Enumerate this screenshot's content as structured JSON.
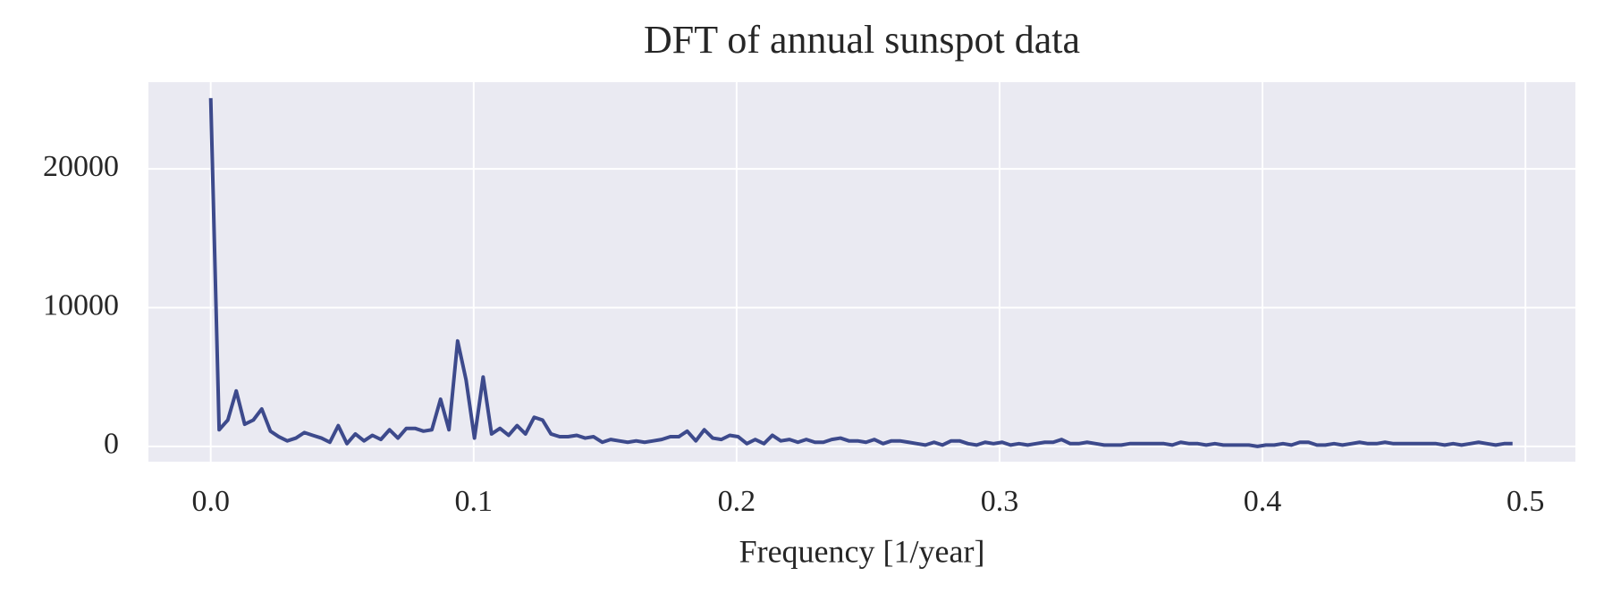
{
  "chart_data": {
    "type": "line",
    "title": "DFT of annual sunspot data",
    "x_label": "Frequency [1/year]",
    "x": [
      0,
      0.0032,
      0.0065,
      0.0097,
      0.0129,
      0.0162,
      0.0194,
      0.0227,
      0.0259,
      0.0291,
      0.0324,
      0.0356,
      0.0388,
      0.0421,
      0.0453,
      0.0485,
      0.0518,
      0.055,
      0.0583,
      0.0615,
      0.0647,
      0.068,
      0.0712,
      0.0744,
      0.0777,
      0.0809,
      0.0841,
      0.0874,
      0.0906,
      0.0939,
      0.0971,
      0.1003,
      0.1036,
      0.1068,
      0.11,
      0.1133,
      0.1165,
      0.1197,
      0.123,
      0.1262,
      0.1294,
      0.1327,
      0.1359,
      0.1392,
      0.1424,
      0.1456,
      0.1489,
      0.1521,
      0.1553,
      0.1586,
      0.1618,
      0.165,
      0.1683,
      0.1715,
      0.1748,
      0.178,
      0.1812,
      0.1845,
      0.1877,
      0.1909,
      0.1942,
      0.1974,
      0.2006,
      0.2039,
      0.2071,
      0.2104,
      0.2136,
      0.2168,
      0.2201,
      0.2233,
      0.2265,
      0.2298,
      0.233,
      0.2362,
      0.2395,
      0.2427,
      0.246,
      0.2492,
      0.2524,
      0.2557,
      0.2589,
      0.2621,
      0.2654,
      0.2686,
      0.2718,
      0.2751,
      0.2783,
      0.2816,
      0.2848,
      0.288,
      0.2913,
      0.2945,
      0.2977,
      0.301,
      0.3042,
      0.3074,
      0.3107,
      0.3139,
      0.3172,
      0.3204,
      0.3236,
      0.3269,
      0.3301,
      0.3333,
      0.3366,
      0.3398,
      0.343,
      0.3463,
      0.3495,
      0.3528,
      0.356,
      0.3592,
      0.3625,
      0.3657,
      0.3689,
      0.3722,
      0.3754,
      0.3786,
      0.3819,
      0.3851,
      0.3883,
      0.3916,
      0.3948,
      0.3981,
      0.4013,
      0.4045,
      0.4078,
      0.411,
      0.4142,
      0.4175,
      0.4207,
      0.4239,
      0.4272,
      0.4304,
      0.4337,
      0.4369,
      0.4401,
      0.4434,
      0.4466,
      0.4498,
      0.4531,
      0.4563,
      0.4595,
      0.4628,
      0.466,
      0.4693,
      0.4725,
      0.4757,
      0.479,
      0.4822,
      0.4854,
      0.4887,
      0.4919,
      0.4951
    ],
    "series": [
      {
        "color": "#3d4a8c",
        "values": [
          25100,
          1200,
          1900,
          4000,
          1600,
          1900,
          2700,
          1100,
          700,
          400,
          600,
          1000,
          800,
          600,
          300,
          1500,
          200,
          900,
          400,
          800,
          500,
          1200,
          600,
          1300,
          1300,
          1100,
          1200,
          3400,
          1200,
          7600,
          4800,
          600,
          5000,
          900,
          1300,
          800,
          1500,
          900,
          2100,
          1900,
          900,
          700,
          700,
          800,
          600,
          700,
          300,
          500,
          400,
          300,
          400,
          300,
          400,
          500,
          700,
          700,
          1100,
          400,
          1200,
          600,
          500,
          800,
          700,
          200,
          500,
          200,
          800,
          400,
          500,
          300,
          500,
          300,
          300,
          500,
          600,
          400,
          400,
          300,
          500,
          200,
          400,
          400,
          300,
          200,
          100,
          300,
          100,
          400,
          400,
          200,
          100,
          300,
          200,
          300,
          100,
          200,
          100,
          200,
          300,
          300,
          500,
          200,
          200,
          300,
          200,
          100,
          100,
          100,
          200,
          200,
          200,
          200,
          200,
          100,
          300,
          200,
          200,
          100,
          200,
          100,
          100,
          100,
          100,
          0,
          100,
          100,
          200,
          100,
          300,
          300,
          100,
          100,
          200,
          100,
          200,
          300,
          200,
          200,
          300,
          200,
          200,
          200,
          200,
          200,
          200,
          100,
          200,
          100,
          200,
          300,
          200,
          100,
          200,
          200
        ]
      }
    ],
    "xlim": [
      -0.0237,
      0.519
    ],
    "ylim": [
      -1100,
      26250
    ],
    "xticks": [
      {
        "value": 0,
        "label": "0.0"
      },
      0.1,
      0.2,
      0.3,
      0.4,
      0.5
    ],
    "yticks": [
      0,
      10000,
      20000
    ],
    "grid": true,
    "background": "#eaeaf2"
  }
}
